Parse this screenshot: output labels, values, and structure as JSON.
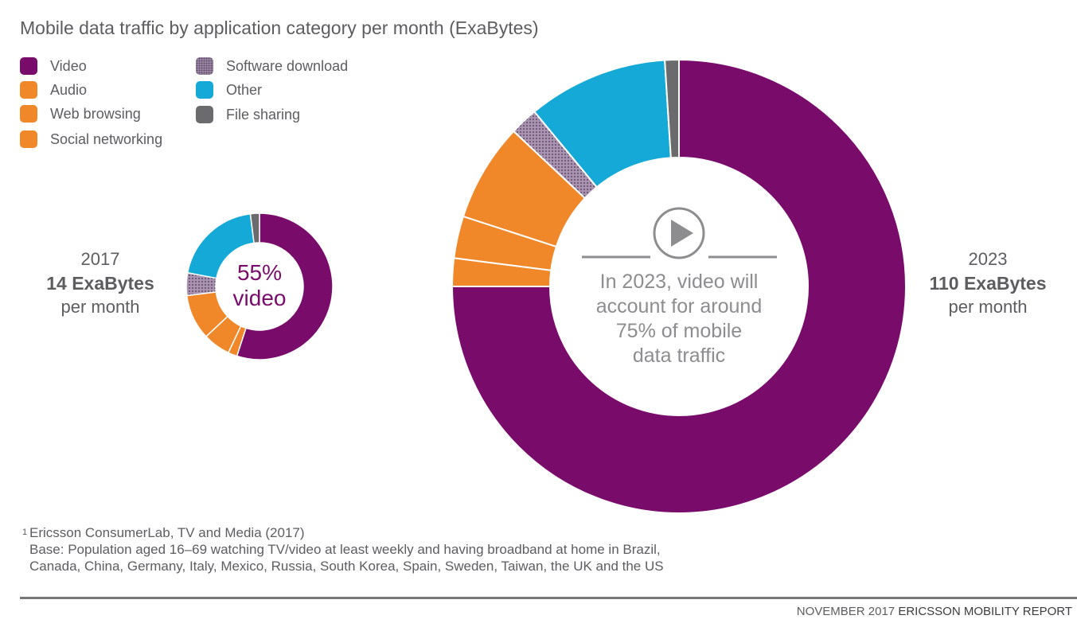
{
  "title": "Mobile data traffic by application category per month (ExaBytes)",
  "legend": [
    {
      "label": "Video",
      "color": "#790c6a"
    },
    {
      "label": "Audio",
      "color": "#f0882a"
    },
    {
      "label": "Web browsing",
      "color": "#f0882a"
    },
    {
      "label": "Social networking",
      "color": "#f0882a"
    },
    {
      "label": "Software download",
      "color": "#8c7196",
      "pattern": "dotted"
    },
    {
      "label": "Other",
      "color": "#14a9d6"
    },
    {
      "label": "File sharing",
      "color": "#6b6b6e"
    }
  ],
  "chart_data": [
    {
      "type": "pie",
      "variant": "donut",
      "year_label": "2017",
      "total_label": "14 ExaBytes",
      "unit_label": "per month",
      "center_text": [
        "55%",
        "video"
      ],
      "total": 14,
      "slices": [
        {
          "label": "Video",
          "share": 0.55
        },
        {
          "label": "Audio",
          "share": 0.02
        },
        {
          "label": "Web browsing",
          "share": 0.06
        },
        {
          "label": "Social networking",
          "share": 0.1
        },
        {
          "label": "Software download",
          "share": 0.05
        },
        {
          "label": "Other",
          "share": 0.2
        },
        {
          "label": "File sharing",
          "share": 0.02
        }
      ]
    },
    {
      "type": "pie",
      "variant": "donut",
      "year_label": "2023",
      "total_label": "110 ExaBytes",
      "unit_label": "per month",
      "center_text": [
        "In 2023, video will",
        "account for around",
        "75% of mobile",
        "data traffic"
      ],
      "total": 110,
      "slices": [
        {
          "label": "Video",
          "share": 0.75
        },
        {
          "label": "Audio",
          "share": 0.02
        },
        {
          "label": "Web browsing",
          "share": 0.03
        },
        {
          "label": "Social networking",
          "share": 0.07
        },
        {
          "label": "Software download",
          "share": 0.02
        },
        {
          "label": "Other",
          "share": 0.1
        },
        {
          "label": "File sharing",
          "share": 0.01
        }
      ]
    }
  ],
  "footnote": {
    "marker": "1",
    "lines": [
      "Ericsson ConsumerLab, TV and Media (2017)",
      "Base: Population aged 16–69 watching TV/video at least weekly and having broadband at home in Brazil,",
      "Canada, China, Germany, Italy, Mexico, Russia, South Korea, Spain, Sweden, Taiwan, the UK and the US"
    ]
  },
  "report": {
    "date": "NOVEMBER 2017",
    "brand": "ERICSSON MOBILITY REPORT"
  },
  "icons": {
    "play": "play-icon"
  }
}
